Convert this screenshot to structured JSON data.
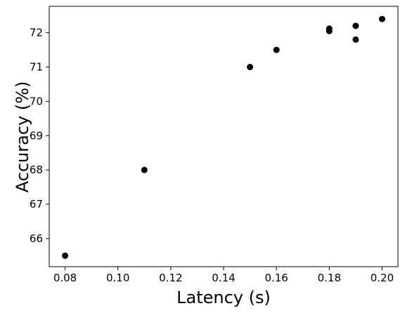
{
  "chart_data": {
    "type": "scatter",
    "title": "",
    "xlabel": "Latency (s)",
    "ylabel": "Accuracy (%)",
    "xlim": [
      0.074,
      0.206
    ],
    "ylim": [
      65.18,
      72.77
    ],
    "xticks": [
      0.08,
      0.1,
      0.12,
      0.14,
      0.16,
      0.18,
      0.2
    ],
    "xtick_labels": [
      "0.08",
      "0.10",
      "0.12",
      "0.14",
      "0.16",
      "0.18",
      "0.20"
    ],
    "yticks": [
      66,
      67,
      68,
      69,
      70,
      71,
      72
    ],
    "ytick_labels": [
      "66",
      "67",
      "68",
      "69",
      "70",
      "71",
      "72"
    ],
    "grid": false,
    "legend": "none",
    "marker_color": "#000000",
    "points": [
      {
        "x": 0.08,
        "y": 65.5
      },
      {
        "x": 0.11,
        "y": 68.0
      },
      {
        "x": 0.15,
        "y": 71.0
      },
      {
        "x": 0.16,
        "y": 71.5
      },
      {
        "x": 0.18,
        "y": 72.05
      },
      {
        "x": 0.18,
        "y": 72.12
      },
      {
        "x": 0.19,
        "y": 71.8
      },
      {
        "x": 0.19,
        "y": 72.2
      },
      {
        "x": 0.2,
        "y": 72.4
      }
    ]
  }
}
